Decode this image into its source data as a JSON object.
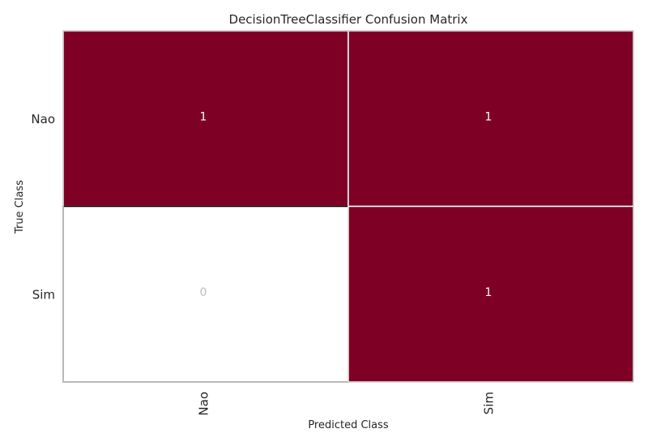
{
  "chart_data": {
    "type": "heatmap",
    "title": "DecisionTreeClassifier Confusion Matrix",
    "xlabel": "Predicted Class",
    "ylabel": "True Class",
    "x_categories": [
      "Nao",
      "Sim"
    ],
    "y_categories": [
      "Nao",
      "Sim"
    ],
    "values": [
      [
        1,
        1
      ],
      [
        0,
        1
      ]
    ],
    "colors": {
      "high": "#7f0025",
      "zero": "#ffffff",
      "label_on_high": "#ffffff",
      "label_on_zero": "#bdbdbd",
      "frame": "#cccccc"
    }
  }
}
